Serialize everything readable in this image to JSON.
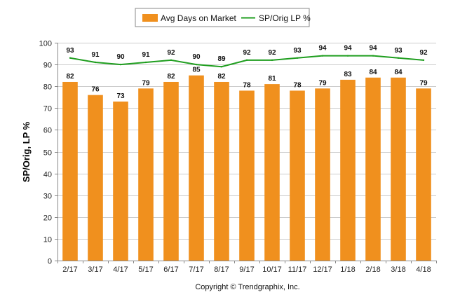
{
  "chart_data": {
    "type": "bar",
    "categories": [
      "2/17",
      "3/17",
      "4/17",
      "5/17",
      "6/17",
      "7/17",
      "8/17",
      "9/17",
      "10/17",
      "11/17",
      "12/17",
      "1/18",
      "2/18",
      "3/18",
      "4/18"
    ],
    "series": [
      {
        "name": "Avg Days on Market",
        "type": "bar",
        "color": "#f0901e",
        "values": [
          82,
          76,
          73,
          79,
          82,
          85,
          82,
          78,
          81,
          78,
          79,
          83,
          84,
          84,
          79
        ]
      },
      {
        "name": "SP/Orig LP %",
        "type": "line",
        "color": "#1f9e1f",
        "values": [
          93,
          91,
          90,
          91,
          92,
          90,
          89,
          92,
          92,
          93,
          94,
          94,
          94,
          93,
          92
        ]
      }
    ],
    "ylabel": "SP/Orig, LP %",
    "xlabel": "",
    "ylim": [
      0,
      100
    ],
    "yticks": [
      0,
      10,
      20,
      30,
      40,
      50,
      60,
      70,
      80,
      90,
      100
    ],
    "grid": true,
    "legend": "top-center",
    "data_labels": true
  },
  "footer": {
    "copyright": "Copyright © Trendgraphix, Inc."
  }
}
